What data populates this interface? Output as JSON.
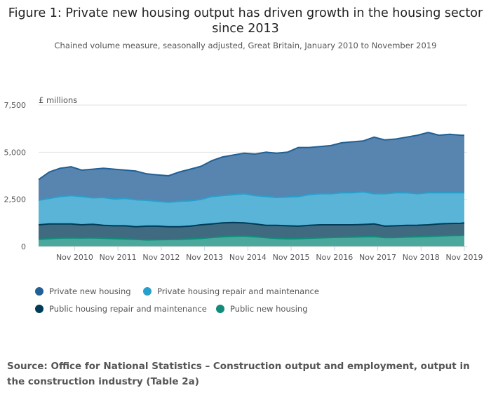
{
  "title": "Figure 1: Private new housing output has driven growth in the housing sector since 2013",
  "subtitle": "Chained volume measure, seasonally adjusted, Great Britain, January 2010 to November 2019",
  "source": "Source: Office for National Statistics – Construction output and employment, output in the construction industry (Table 2a)",
  "chart_data": {
    "type": "area",
    "stacked": true,
    "ylabel": "£ millions",
    "ylim": [
      0,
      7500
    ],
    "yticks": [
      {
        "v": 0,
        "label": "0"
      },
      {
        "v": 2500,
        "label": "2,500"
      },
      {
        "v": 5000,
        "label": "5,000"
      },
      {
        "v": 7500,
        "label": "7,500"
      }
    ],
    "x_start": "Jan 2010",
    "x_end": "Nov 2019",
    "xticks": [
      {
        "m": 10,
        "label": "Nov 2010"
      },
      {
        "m": 22,
        "label": "Nov 2011"
      },
      {
        "m": 34,
        "label": "Nov 2012"
      },
      {
        "m": 46,
        "label": "Nov 2013"
      },
      {
        "m": 58,
        "label": "Nov 2014"
      },
      {
        "m": 70,
        "label": "Nov 2015"
      },
      {
        "m": 82,
        "label": "Nov 2016"
      },
      {
        "m": 94,
        "label": "Nov 2017"
      },
      {
        "m": 106,
        "label": "Nov 2018"
      },
      {
        "m": 118,
        "label": "Nov 2019"
      }
    ],
    "x_months": [
      0,
      3,
      6,
      9,
      12,
      15,
      18,
      21,
      24,
      27,
      30,
      33,
      36,
      39,
      42,
      45,
      48,
      51,
      54,
      57,
      60,
      63,
      66,
      69,
      72,
      75,
      78,
      81,
      84,
      87,
      90,
      93,
      96,
      99,
      102,
      105,
      108,
      111,
      114,
      117,
      118
    ],
    "series": [
      {
        "name": "Public new housing",
        "line": "#118c7b",
        "fill": "#4aa89c",
        "values": [
          380,
          420,
          450,
          460,
          450,
          460,
          440,
          420,
          400,
          380,
          350,
          360,
          370,
          380,
          400,
          430,
          480,
          520,
          550,
          560,
          520,
          470,
          430,
          410,
          420,
          440,
          460,
          480,
          490,
          500,
          520,
          530,
          470,
          480,
          500,
          520,
          540,
          560,
          580,
          590,
          600
        ]
      },
      {
        "name": "Public housing repair and maintenance",
        "line": "#003c57",
        "fill": "#3f6a80",
        "values": [
          770,
          780,
          750,
          740,
          700,
          720,
          680,
          680,
          700,
          670,
          730,
          720,
          680,
          670,
          680,
          720,
          720,
          730,
          720,
          690,
          680,
          650,
          690,
          690,
          660,
          680,
          690,
          670,
          660,
          650,
          650,
          670,
          610,
          620,
          620,
          610,
          610,
          640,
          640,
          640,
          650
        ]
      },
      {
        "name": "Private housing repair and maintenance",
        "line": "#27a0cc",
        "fill": "#5ab4d8",
        "values": [
          1300,
          1350,
          1450,
          1500,
          1500,
          1400,
          1480,
          1420,
          1450,
          1430,
          1370,
          1320,
          1300,
          1350,
          1340,
          1350,
          1450,
          1450,
          1480,
          1550,
          1500,
          1530,
          1480,
          1520,
          1570,
          1630,
          1650,
          1650,
          1700,
          1700,
          1730,
          1600,
          1720,
          1750,
          1730,
          1670,
          1700,
          1650,
          1630,
          1620,
          1600
        ]
      },
      {
        "name": "Private new housing",
        "line": "#206095",
        "fill": "#5785b0",
        "values": [
          1100,
          1400,
          1500,
          1530,
          1400,
          1520,
          1550,
          1580,
          1500,
          1520,
          1400,
          1400,
          1400,
          1550,
          1680,
          1750,
          1900,
          2050,
          2100,
          2150,
          2200,
          2350,
          2350,
          2380,
          2600,
          2500,
          2500,
          2550,
          2650,
          2700,
          2700,
          3000,
          2850,
          2850,
          2950,
          3100,
          3200,
          3050,
          3100,
          3050,
          3050
        ]
      }
    ],
    "legend": [
      "Private new housing",
      "Private housing repair and maintenance",
      "Public housing repair and maintenance",
      "Public new housing"
    ],
    "legend_placement": "bottom"
  }
}
